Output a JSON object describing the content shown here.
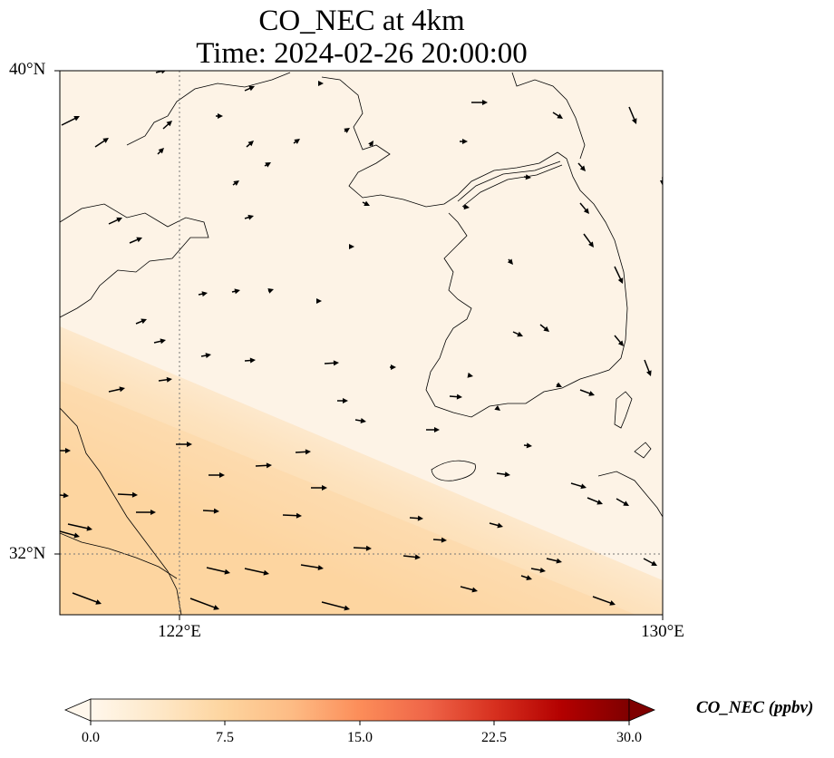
{
  "title": {
    "line1": "CO_NEC at 4km",
    "line2": "Time: 2024-02-26 20:00:00"
  },
  "map": {
    "lat_labels": [
      "40°N",
      "32°N"
    ],
    "lon_labels": [
      "122°E",
      "130°E"
    ],
    "extent": {
      "lon": [
        120,
        130
      ],
      "lat": [
        31,
        40
      ]
    },
    "gridlines": {
      "lon": [
        122
      ],
      "lat": [
        32
      ]
    },
    "background_color": "#fdf3e6",
    "plume_color": "#fdd9a8"
  },
  "colorbar": {
    "label": "CO_NEC (ppbv)",
    "ticks": [
      "0.0",
      "7.5",
      "15.0",
      "22.5",
      "30.0"
    ],
    "range": [
      0,
      30
    ],
    "extend": "both",
    "colormap": "OrRd",
    "colors": [
      "#fff7ec",
      "#fee8c8",
      "#fdd49e",
      "#fdbb84",
      "#fc8d59",
      "#ef6548",
      "#d7301f",
      "#b30000",
      "#7f0000"
    ]
  },
  "chart_data": {
    "type": "heatmap",
    "title": "CO_NEC at 4km\nTime: 2024-02-26 20:00:00",
    "variable": "CO_NEC",
    "units": "ppbv",
    "level": "4km",
    "time": "2024-02-26 20:00:00",
    "value_range": [
      0,
      30
    ],
    "observed_range_approx": [
      0.5,
      5
    ],
    "overlay": "wind vectors"
  }
}
